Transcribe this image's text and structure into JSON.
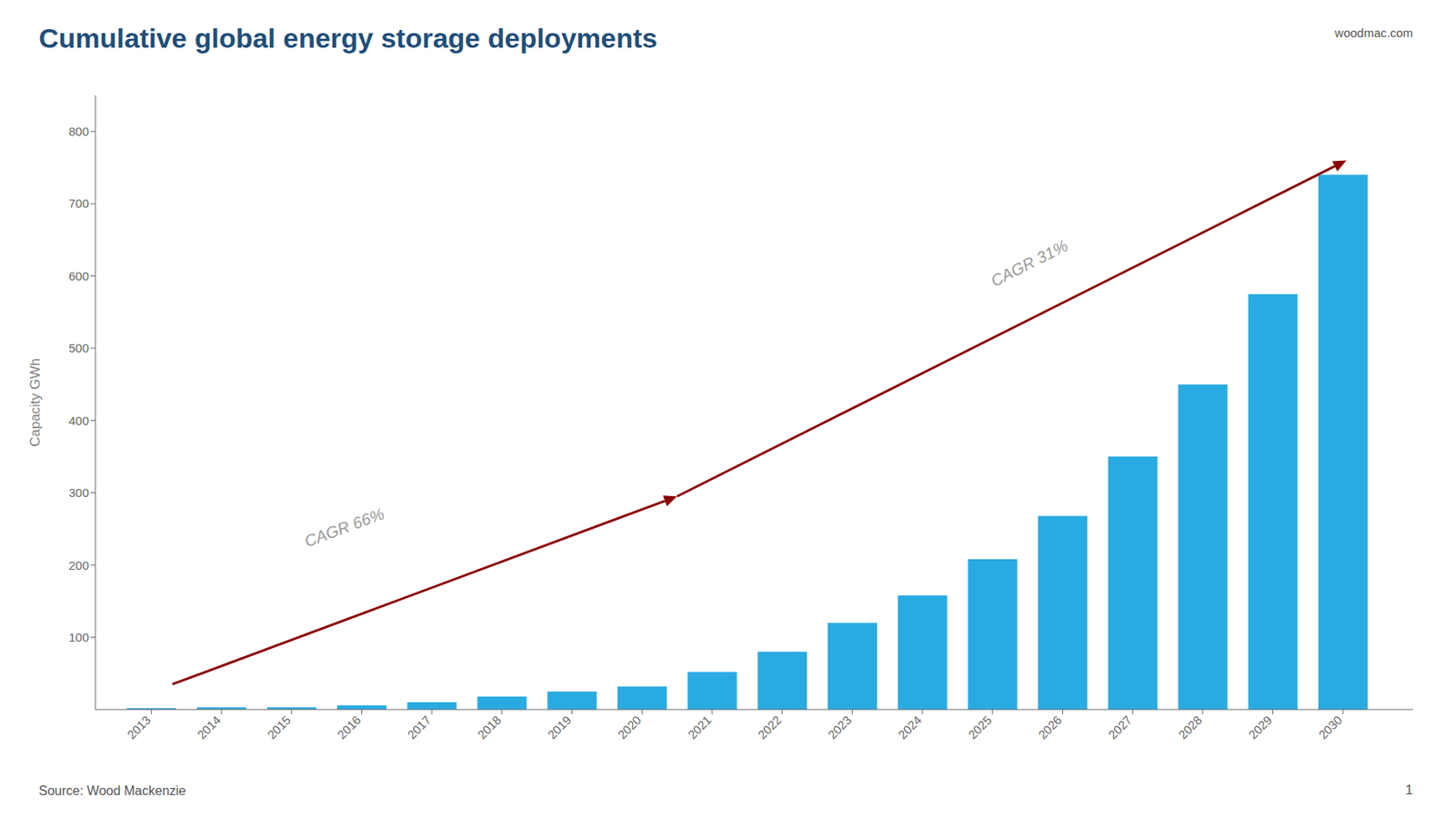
{
  "chart_data": {
    "type": "bar",
    "title": "Cumulative global energy storage deployments",
    "ylabel": "Capacity GWh",
    "x": [
      2013,
      2014,
      2015,
      2016,
      2017,
      2018,
      2019,
      2020,
      2021,
      2022,
      2023,
      2024,
      2025,
      2026,
      2027,
      2028,
      2029,
      2030
    ],
    "values": [
      2,
      3,
      3,
      6,
      10,
      18,
      25,
      32,
      52,
      80,
      120,
      158,
      208,
      268,
      350,
      450,
      575,
      740
    ],
    "color": "#29ABE2",
    "xlim": [
      2012.2,
      2031.0
    ],
    "xticks": [
      2013,
      2014,
      2015,
      2016,
      2017,
      2018,
      2019,
      2020,
      2021,
      2022,
      2023,
      2024,
      2025,
      2026,
      2027,
      2028,
      2029,
      2030
    ],
    "ylim": [
      0,
      850
    ],
    "yticks": [
      100,
      200,
      300,
      400,
      500,
      600,
      700,
      800
    ],
    "grid": false,
    "annotations": [
      {
        "text": "CAGR 66%",
        "x": 2015.2,
        "y": 230,
        "color": "#8B0000",
        "arrow": {
          "x_start": 2013.3,
          "y_start": 35,
          "x_end": 2020.5,
          "y_end": 295
        }
      },
      {
        "text": "CAGR 31%",
        "x": 2025.0,
        "y": 590,
        "color": "#8B0000",
        "arrow": {
          "x_start": 2020.5,
          "y_start": 295,
          "x_end": 2030.05,
          "y_end": 760
        }
      }
    ],
    "source": "Source: Wood Mackenzie",
    "page_number": "1",
    "website": "woodmac.com"
  }
}
